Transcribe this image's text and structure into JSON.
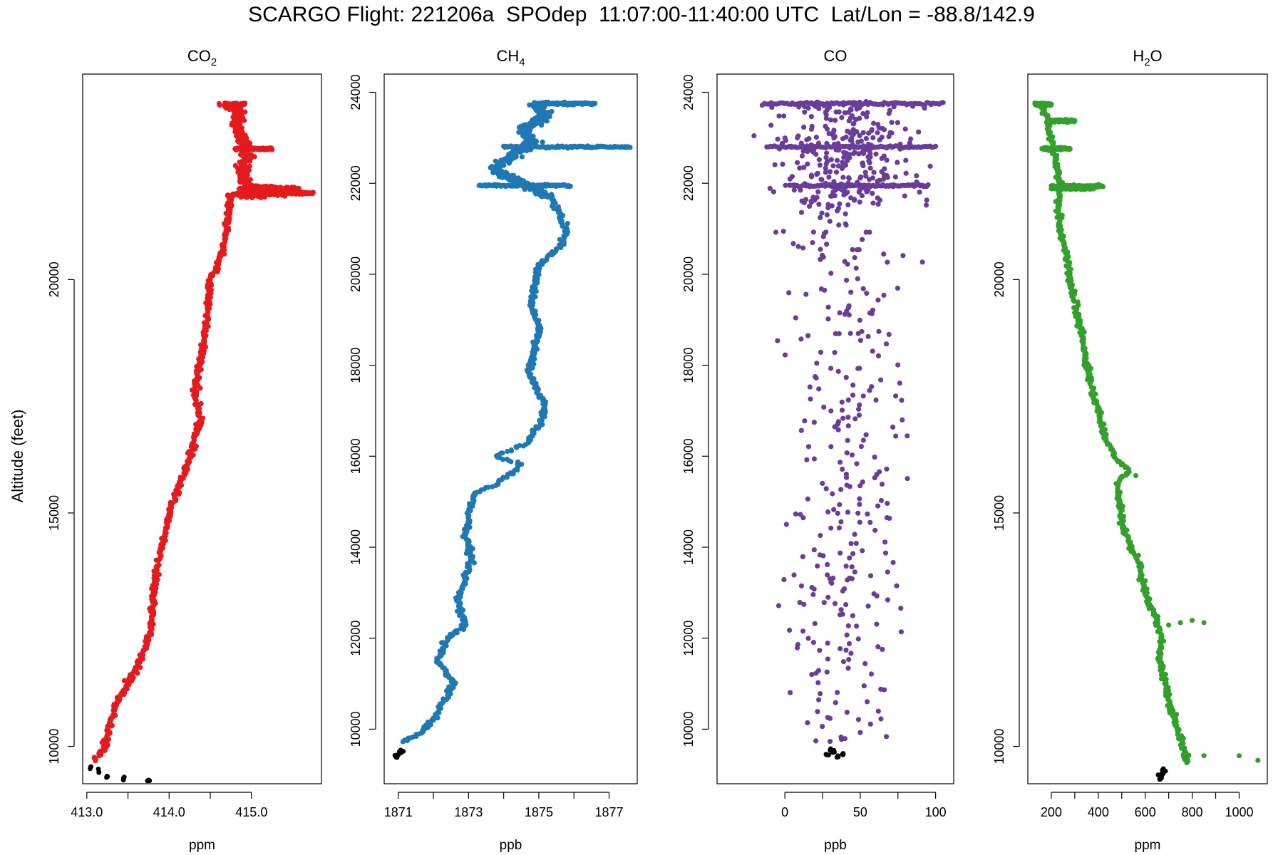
{
  "title": "SCARGO Flight: 221206a  SPOdep  11:07:00-11:40:00 UTC  Lat/Lon = -88.8/142.9",
  "ylabel": "Altitude (feet)",
  "chart_data": [
    {
      "type": "scatter",
      "title": "CO2",
      "title_main": "CO",
      "title_sub": "2",
      "xlabel": "ppm",
      "xlim": [
        412.95,
        415.85
      ],
      "ylim": [
        9200,
        24400
      ],
      "xticks": [
        413.0,
        414.0,
        415.0
      ],
      "xtick_labels": [
        "413.0",
        "414.0",
        "415.0"
      ],
      "yticks": [
        10000,
        15000,
        20000
      ],
      "ytick_labels": [
        "10000",
        "15000",
        "20000"
      ],
      "color": "#e41a1c",
      "ground_color": "#000000",
      "profile": [
        [
          413.1,
          9700
        ],
        [
          413.22,
          10000
        ],
        [
          413.28,
          10500
        ],
        [
          413.38,
          11000
        ],
        [
          413.55,
          11500
        ],
        [
          413.68,
          12000
        ],
        [
          413.78,
          12500
        ],
        [
          413.8,
          13000
        ],
        [
          413.82,
          13500
        ],
        [
          413.88,
          14000
        ],
        [
          413.95,
          14500
        ],
        [
          414.0,
          15000
        ],
        [
          414.1,
          15500
        ],
        [
          414.22,
          16000
        ],
        [
          414.3,
          16500
        ],
        [
          414.38,
          17000
        ],
        [
          414.32,
          17500
        ],
        [
          414.35,
          18000
        ],
        [
          414.4,
          18500
        ],
        [
          414.45,
          19000
        ],
        [
          414.48,
          19500
        ],
        [
          414.5,
          20000
        ],
        [
          414.62,
          20500
        ],
        [
          414.7,
          21000
        ],
        [
          414.72,
          21500
        ],
        [
          414.75,
          21800
        ]
      ],
      "upper_band": [
        [
          414.7,
          23750
        ],
        [
          414.85,
          23600
        ],
        [
          414.82,
          23300
        ],
        [
          414.9,
          23000
        ],
        [
          414.95,
          22600
        ],
        [
          414.88,
          22300
        ],
        [
          414.95,
          22000
        ],
        [
          415.2,
          21950
        ],
        [
          415.6,
          21900
        ],
        [
          415.1,
          21800
        ],
        [
          414.75,
          21800
        ]
      ],
      "spikes": [
        {
          "y": 23750,
          "x0": 414.68,
          "x1": 414.92
        },
        {
          "y": 22800,
          "x0": 414.8,
          "x1": 415.25
        },
        {
          "y": 21950,
          "x0": 414.85,
          "x1": 415.55
        },
        {
          "y": 21850,
          "x0": 414.9,
          "x1": 415.75
        }
      ],
      "ground": [
        [
          413.05,
          9550
        ],
        [
          413.15,
          9450
        ],
        [
          413.25,
          9380
        ],
        [
          413.45,
          9330
        ],
        [
          413.75,
          9290
        ]
      ]
    },
    {
      "type": "scatter",
      "title": "CH4",
      "title_main": "CH",
      "title_sub": "4",
      "xlabel": "ppb",
      "xlim": [
        1870.6,
        1877.8
      ],
      "ylim": [
        8800,
        24400
      ],
      "xticks": [
        1871,
        1873,
        1875,
        1877
      ],
      "xtick_labels": [
        "1871",
        "1873",
        "1875",
        "1877"
      ],
      "yticks": [
        10000,
        12000,
        14000,
        16000,
        18000,
        20000,
        22000,
        24000
      ],
      "ytick_labels": [
        "10000",
        "12000",
        "14000",
        "16000",
        "18000",
        "20000",
        "22000",
        "24000"
      ],
      "color": "#1f78b4",
      "ground_color": "#000000",
      "profile": [
        [
          1871.1,
          9700
        ],
        [
          1871.6,
          9900
        ],
        [
          1872.0,
          10200
        ],
        [
          1872.3,
          10600
        ],
        [
          1872.6,
          11000
        ],
        [
          1872.1,
          11500
        ],
        [
          1872.4,
          12000
        ],
        [
          1872.9,
          12300
        ],
        [
          1872.7,
          12800
        ],
        [
          1872.9,
          13300
        ],
        [
          1873.1,
          13800
        ],
        [
          1872.9,
          14300
        ],
        [
          1873.0,
          14800
        ],
        [
          1873.2,
          15200
        ],
        [
          1873.8,
          15400
        ],
        [
          1874.5,
          15800
        ],
        [
          1873.8,
          16000
        ],
        [
          1874.7,
          16300
        ],
        [
          1875.0,
          16700
        ],
        [
          1875.2,
          17100
        ],
        [
          1874.9,
          17500
        ],
        [
          1874.7,
          17900
        ],
        [
          1874.9,
          18300
        ],
        [
          1875.0,
          18800
        ],
        [
          1874.8,
          19300
        ],
        [
          1874.9,
          19800
        ],
        [
          1875.0,
          20200
        ],
        [
          1875.6,
          20600
        ],
        [
          1875.8,
          20900
        ],
        [
          1875.6,
          21300
        ],
        [
          1875.3,
          21700
        ]
      ],
      "upper_band": [
        [
          1875.3,
          21700
        ],
        [
          1874.5,
          22000
        ],
        [
          1873.7,
          22300
        ],
        [
          1874.2,
          22600
        ],
        [
          1874.8,
          22900
        ],
        [
          1874.6,
          23200
        ],
        [
          1875.2,
          23500
        ],
        [
          1874.9,
          23750
        ]
      ],
      "spikes": [
        {
          "y": 23750,
          "x0": 1874.9,
          "x1": 1876.6
        },
        {
          "y": 22800,
          "x0": 1874.0,
          "x1": 1877.6
        },
        {
          "y": 21950,
          "x0": 1873.3,
          "x1": 1875.9
        }
      ],
      "ground": [
        [
          1870.9,
          9400
        ],
        [
          1871.0,
          9450
        ],
        [
          1871.1,
          9480
        ],
        [
          1870.95,
          9380
        ],
        [
          1871.05,
          9520
        ]
      ]
    },
    {
      "type": "scatter",
      "title": "CO",
      "title_main": "CO",
      "title_sub": "",
      "xlabel": "ppb",
      "xlim": [
        -45,
        112
      ],
      "ylim": [
        8800,
        24400
      ],
      "xticks": [
        0,
        50,
        100
      ],
      "xtick_labels": [
        "0",
        "50",
        "100"
      ],
      "yticks": [
        10000,
        12000,
        14000,
        16000,
        18000,
        20000,
        22000,
        24000
      ],
      "ytick_labels": [
        "10000",
        "12000",
        "14000",
        "16000",
        "18000",
        "20000",
        "22000",
        "24000"
      ],
      "color": "#6a3d9a",
      "ground_color": "#000000",
      "scatter_center": 40,
      "scatter_spread": 28,
      "spikes": [
        {
          "y": 23750,
          "x0": -15,
          "x1": 105
        },
        {
          "y": 22800,
          "x0": -12,
          "x1": 100
        },
        {
          "y": 21950,
          "x0": 3,
          "x1": 95
        }
      ],
      "ground": [
        [
          28,
          9450
        ],
        [
          32,
          9500
        ],
        [
          35,
          9400
        ],
        [
          30,
          9550
        ],
        [
          38,
          9420
        ]
      ]
    },
    {
      "type": "scatter",
      "title": "H2O",
      "title_main": "H",
      "title_sub": "2",
      "title_tail": "O",
      "xlabel": "ppm",
      "xlim": [
        100,
        1120
      ],
      "ylim": [
        9200,
        24400
      ],
      "xticks": [
        200,
        400,
        600,
        800,
        1000
      ],
      "xtick_labels": [
        "200",
        "400",
        "600",
        "800",
        "1000"
      ],
      "yticks": [
        10000,
        15000,
        20000
      ],
      "ytick_labels": [
        "10000",
        "15000",
        "20000"
      ],
      "color": "#33a02c",
      "ground_color": "#000000",
      "profile": [
        [
          780,
          9650
        ],
        [
          760,
          10000
        ],
        [
          730,
          10500
        ],
        [
          700,
          11000
        ],
        [
          680,
          11500
        ],
        [
          660,
          12000
        ],
        [
          670,
          12300
        ],
        [
          640,
          12800
        ],
        [
          600,
          13300
        ],
        [
          580,
          13800
        ],
        [
          540,
          14300
        ],
        [
          500,
          14800
        ],
        [
          490,
          15200
        ],
        [
          480,
          15600
        ],
        [
          530,
          15900
        ],
        [
          470,
          16200
        ],
        [
          430,
          16600
        ],
        [
          410,
          17000
        ],
        [
          380,
          17500
        ],
        [
          360,
          18000
        ],
        [
          340,
          18500
        ],
        [
          320,
          19000
        ],
        [
          300,
          19500
        ],
        [
          280,
          20000
        ],
        [
          260,
          20500
        ],
        [
          240,
          21000
        ],
        [
          230,
          21500
        ],
        [
          240,
          22000
        ],
        [
          220,
          22500
        ],
        [
          200,
          23000
        ],
        [
          180,
          23500
        ],
        [
          150,
          23750
        ]
      ],
      "spikes": [
        {
          "y": 23750,
          "x0": 130,
          "x1": 200
        },
        {
          "y": 23400,
          "x0": 200,
          "x1": 300
        },
        {
          "y": 22800,
          "x0": 160,
          "x1": 280
        },
        {
          "y": 22000,
          "x0": 200,
          "x1": 420
        },
        {
          "y": 21950,
          "x0": 200,
          "x1": 380
        }
      ],
      "outliers": [
        [
          1080,
          9700
        ],
        [
          1000,
          9800
        ],
        [
          850,
          9800
        ],
        [
          700,
          12600
        ],
        [
          800,
          12700
        ],
        [
          850,
          12650
        ],
        [
          750,
          12650
        ],
        [
          560,
          15800
        ]
      ],
      "ground": [
        [
          660,
          9350
        ],
        [
          670,
          9400
        ],
        [
          680,
          9450
        ],
        [
          665,
          9300
        ],
        [
          675,
          9500
        ]
      ]
    }
  ]
}
